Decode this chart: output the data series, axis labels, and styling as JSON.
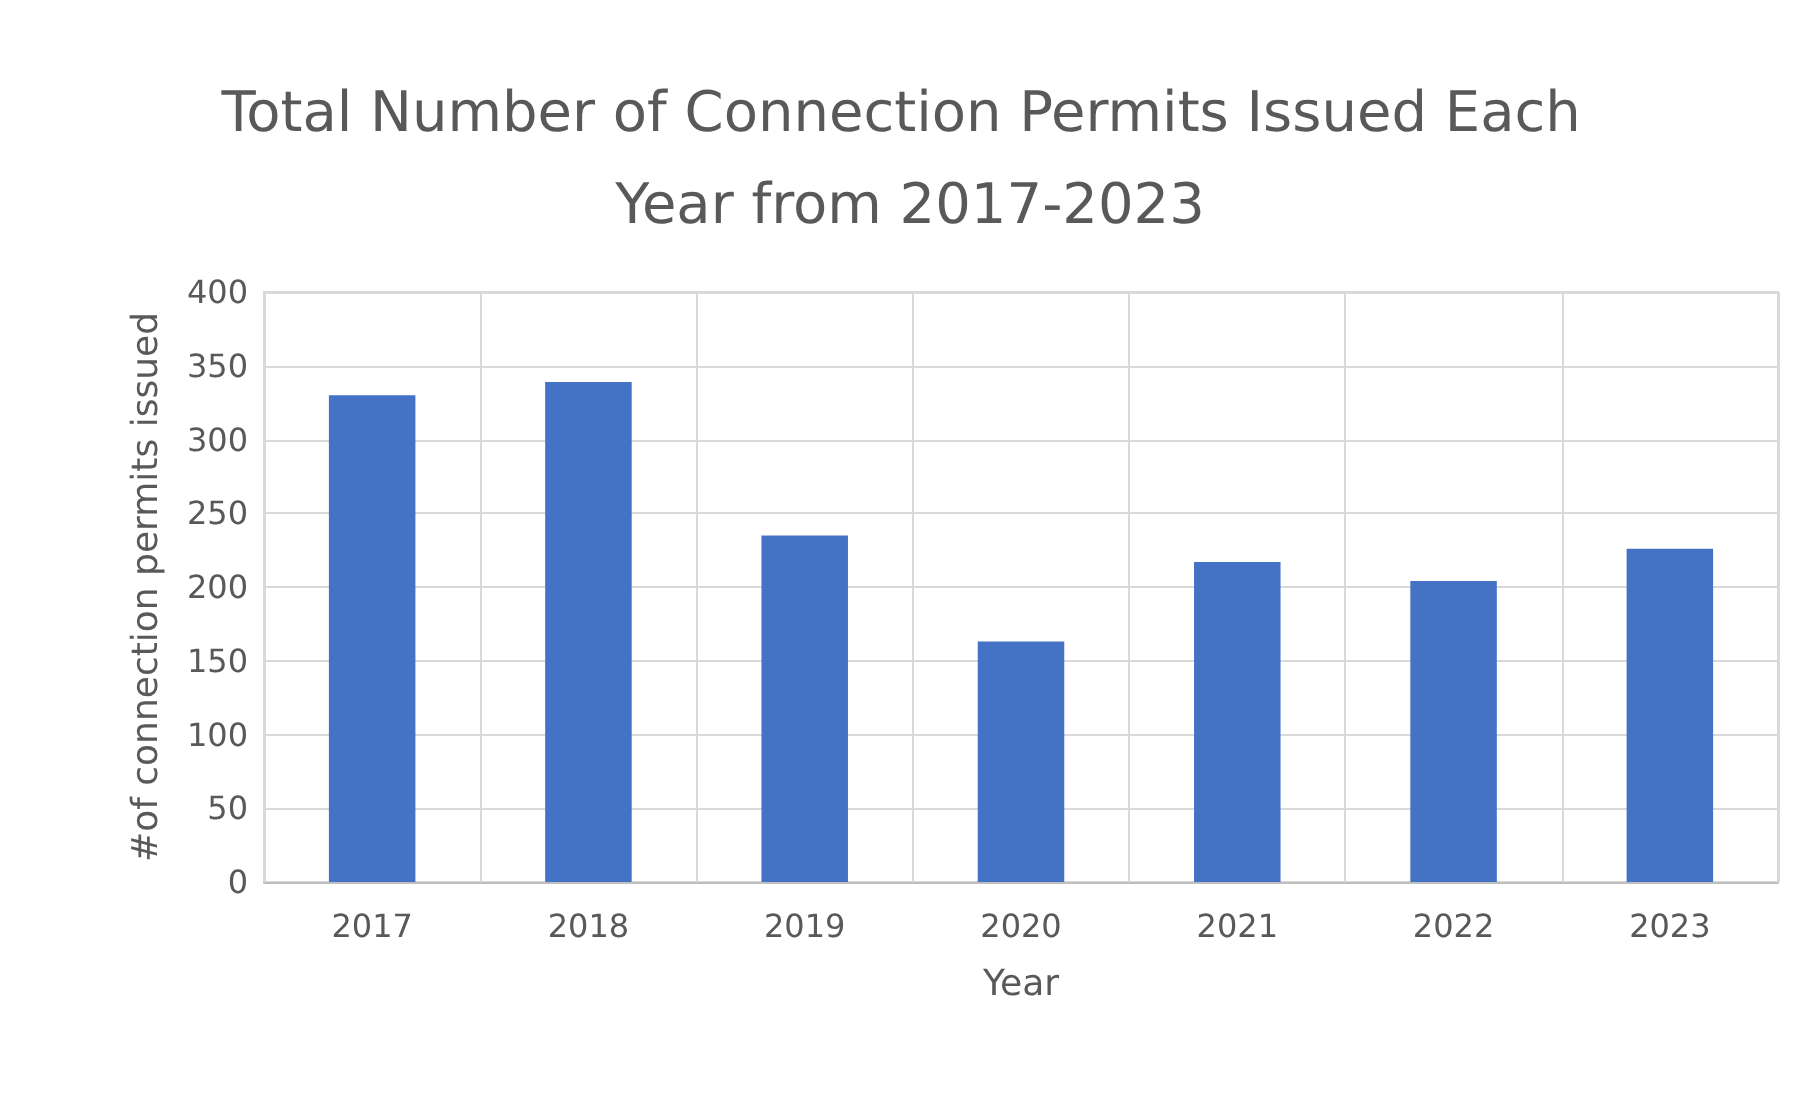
{
  "chart_data": {
    "type": "bar",
    "title": "Total Number of Connection Permits Issued Each Year from 2017-2023",
    "xlabel": "Year",
    "ylabel": "#of connection permits issued",
    "categories": [
      "2017",
      "2018",
      "2019",
      "2020",
      "2021",
      "2022",
      "2023"
    ],
    "values": [
      330,
      339,
      235,
      163,
      217,
      204,
      226
    ],
    "color": "#4472c4",
    "ylim": [
      0,
      400
    ],
    "yticks": [
      0,
      50,
      100,
      150,
      200,
      250,
      300,
      350,
      400
    ],
    "grid": true
  }
}
